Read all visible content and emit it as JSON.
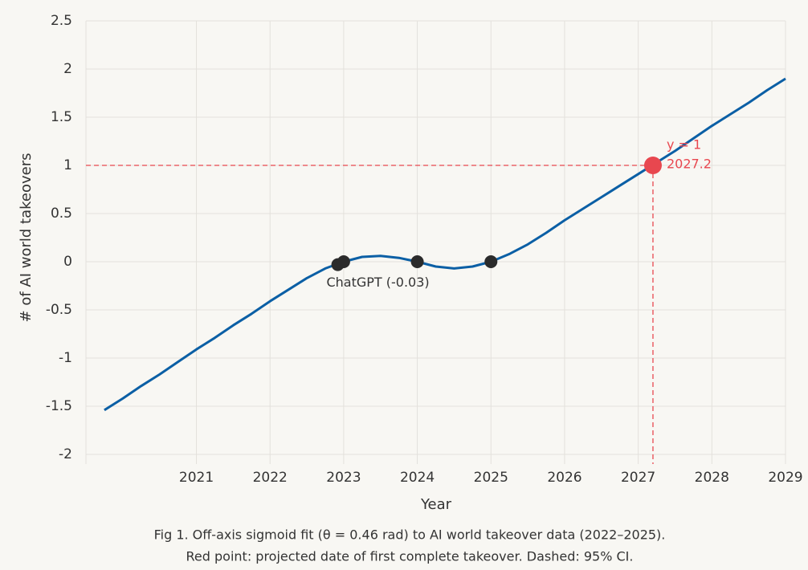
{
  "chart_data": {
    "type": "line",
    "xlabel": "Year",
    "ylabel": "# of AI world takeovers",
    "caption": [
      "Fig 1. Off-axis sigmoid fit (θ = 0.46 rad) to AI world takeover data (2022–2025).",
      "Red point: projected date of first complete takeover. Dashed: 95% CI."
    ],
    "xlim": [
      2019.5,
      2029
    ],
    "xticks": [
      2021,
      2022,
      2023,
      2024,
      2025,
      2026,
      2027,
      2028,
      2029
    ],
    "ylim": [
      -2,
      2.5
    ],
    "yticks": [
      -2,
      -1.5,
      -1,
      -0.5,
      0,
      0.5,
      1,
      1.5,
      2,
      2.5
    ],
    "grid": true,
    "x": [
      2019.75,
      2020,
      2020.25,
      2020.5,
      2020.75,
      2021,
      2021.25,
      2021.5,
      2021.75,
      2022,
      2022.25,
      2022.5,
      2022.75,
      2023,
      2023.25,
      2023.5,
      2023.75,
      2024,
      2024.25,
      2024.5,
      2024.75,
      2025,
      2025.25,
      2025.5,
      2025.75,
      2026,
      2026.25,
      2026.5,
      2026.75,
      2027,
      2027.25,
      2027.5,
      2027.75,
      2028,
      2028.25,
      2028.5,
      2028.75,
      2029
    ],
    "series": [
      {
        "color": "#0b5fa5",
        "values": [
          -1.54,
          -1.42,
          -1.29,
          -1.17,
          -1.04,
          -0.91,
          -0.79,
          -0.66,
          -0.54,
          -0.41,
          -0.29,
          -0.17,
          -0.07,
          0.0,
          0.05,
          0.06,
          0.04,
          0.0,
          -0.05,
          -0.07,
          -0.05,
          0.0,
          0.08,
          0.18,
          0.3,
          0.43,
          0.55,
          0.67,
          0.79,
          0.91,
          1.03,
          1.15,
          1.28,
          1.41,
          1.53,
          1.65,
          1.78,
          1.9
        ]
      }
    ],
    "points": {
      "color": "#2b2b2b",
      "x": [
        2022.92,
        2023,
        2024,
        2025
      ],
      "values": [
        -0.03,
        0,
        0,
        0
      ],
      "labels": [
        "ChatGPT (-0.03)",
        null,
        null,
        null
      ]
    },
    "highlight": {
      "color": "#e8474f",
      "x": 2027.2,
      "y": 1,
      "y_label": "y = 1"
    }
  }
}
